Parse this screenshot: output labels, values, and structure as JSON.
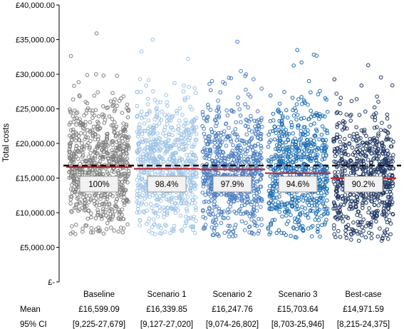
{
  "chart_data": {
    "type": "scatter",
    "title": "",
    "ylabel": "Total costs",
    "ylim": [
      0,
      40000
    ],
    "y_ticks": [
      0,
      5000,
      10000,
      15000,
      20000,
      25000,
      30000,
      35000,
      40000
    ],
    "y_tick_labels": [
      "£-",
      "£5,000.00",
      "£10,000.00",
      "£15,000.00",
      "£20,000.00",
      "£25,000.00",
      "£30,000.00",
      "£35,000.00",
      "£40,000.00"
    ],
    "grid": false,
    "reference_line": {
      "value": 16599.09,
      "style": "dashed",
      "color": "#111111"
    },
    "mean_line_color": "#c0272d",
    "categories": [
      "Baseline",
      "Scenario 1",
      "Scenario 2",
      "Scenario 3",
      "Best-case"
    ],
    "series": [
      {
        "category": "Baseline",
        "mean": 16599.09,
        "ci_low": 9225,
        "ci_high": 27679,
        "pct": "100%",
        "color": "#7f7f7f",
        "min": 6900,
        "max": 35900
      },
      {
        "category": "Scenario 1",
        "mean": 16339.85,
        "ci_low": 9127,
        "ci_high": 27020,
        "pct": "98.4%",
        "color": "#9dc3e6",
        "min": 6900,
        "max": 35000
      },
      {
        "category": "Scenario 2",
        "mean": 16247.76,
        "ci_low": 9074,
        "ci_high": 26802,
        "pct": "97.9%",
        "color": "#4a7ec1",
        "min": 6500,
        "max": 34700
      },
      {
        "category": "Scenario 3",
        "mean": 15703.64,
        "ci_low": 8703,
        "ci_high": 25946,
        "pct": "94.6%",
        "color": "#1f6fb4",
        "min": 6400,
        "max": 33500
      },
      {
        "category": "Best-case",
        "mean": 14971.59,
        "ci_low": 8215,
        "ci_high": 24375,
        "pct": "90.2%",
        "color": "#203864",
        "min": 5900,
        "max": 31300
      }
    ],
    "table": {
      "mean_label": "Mean",
      "ci_label": "95% CI",
      "means": [
        "£16,599.09",
        "£16,339.85",
        "£16,247.76",
        "£15,703.64",
        "£14,971.59"
      ],
      "cis": [
        "[9,225-27,679]",
        "[9,127-27,020]",
        "[9,074-26,802]",
        "[8,703-25,946]",
        "[8,215-24,375]"
      ]
    }
  }
}
